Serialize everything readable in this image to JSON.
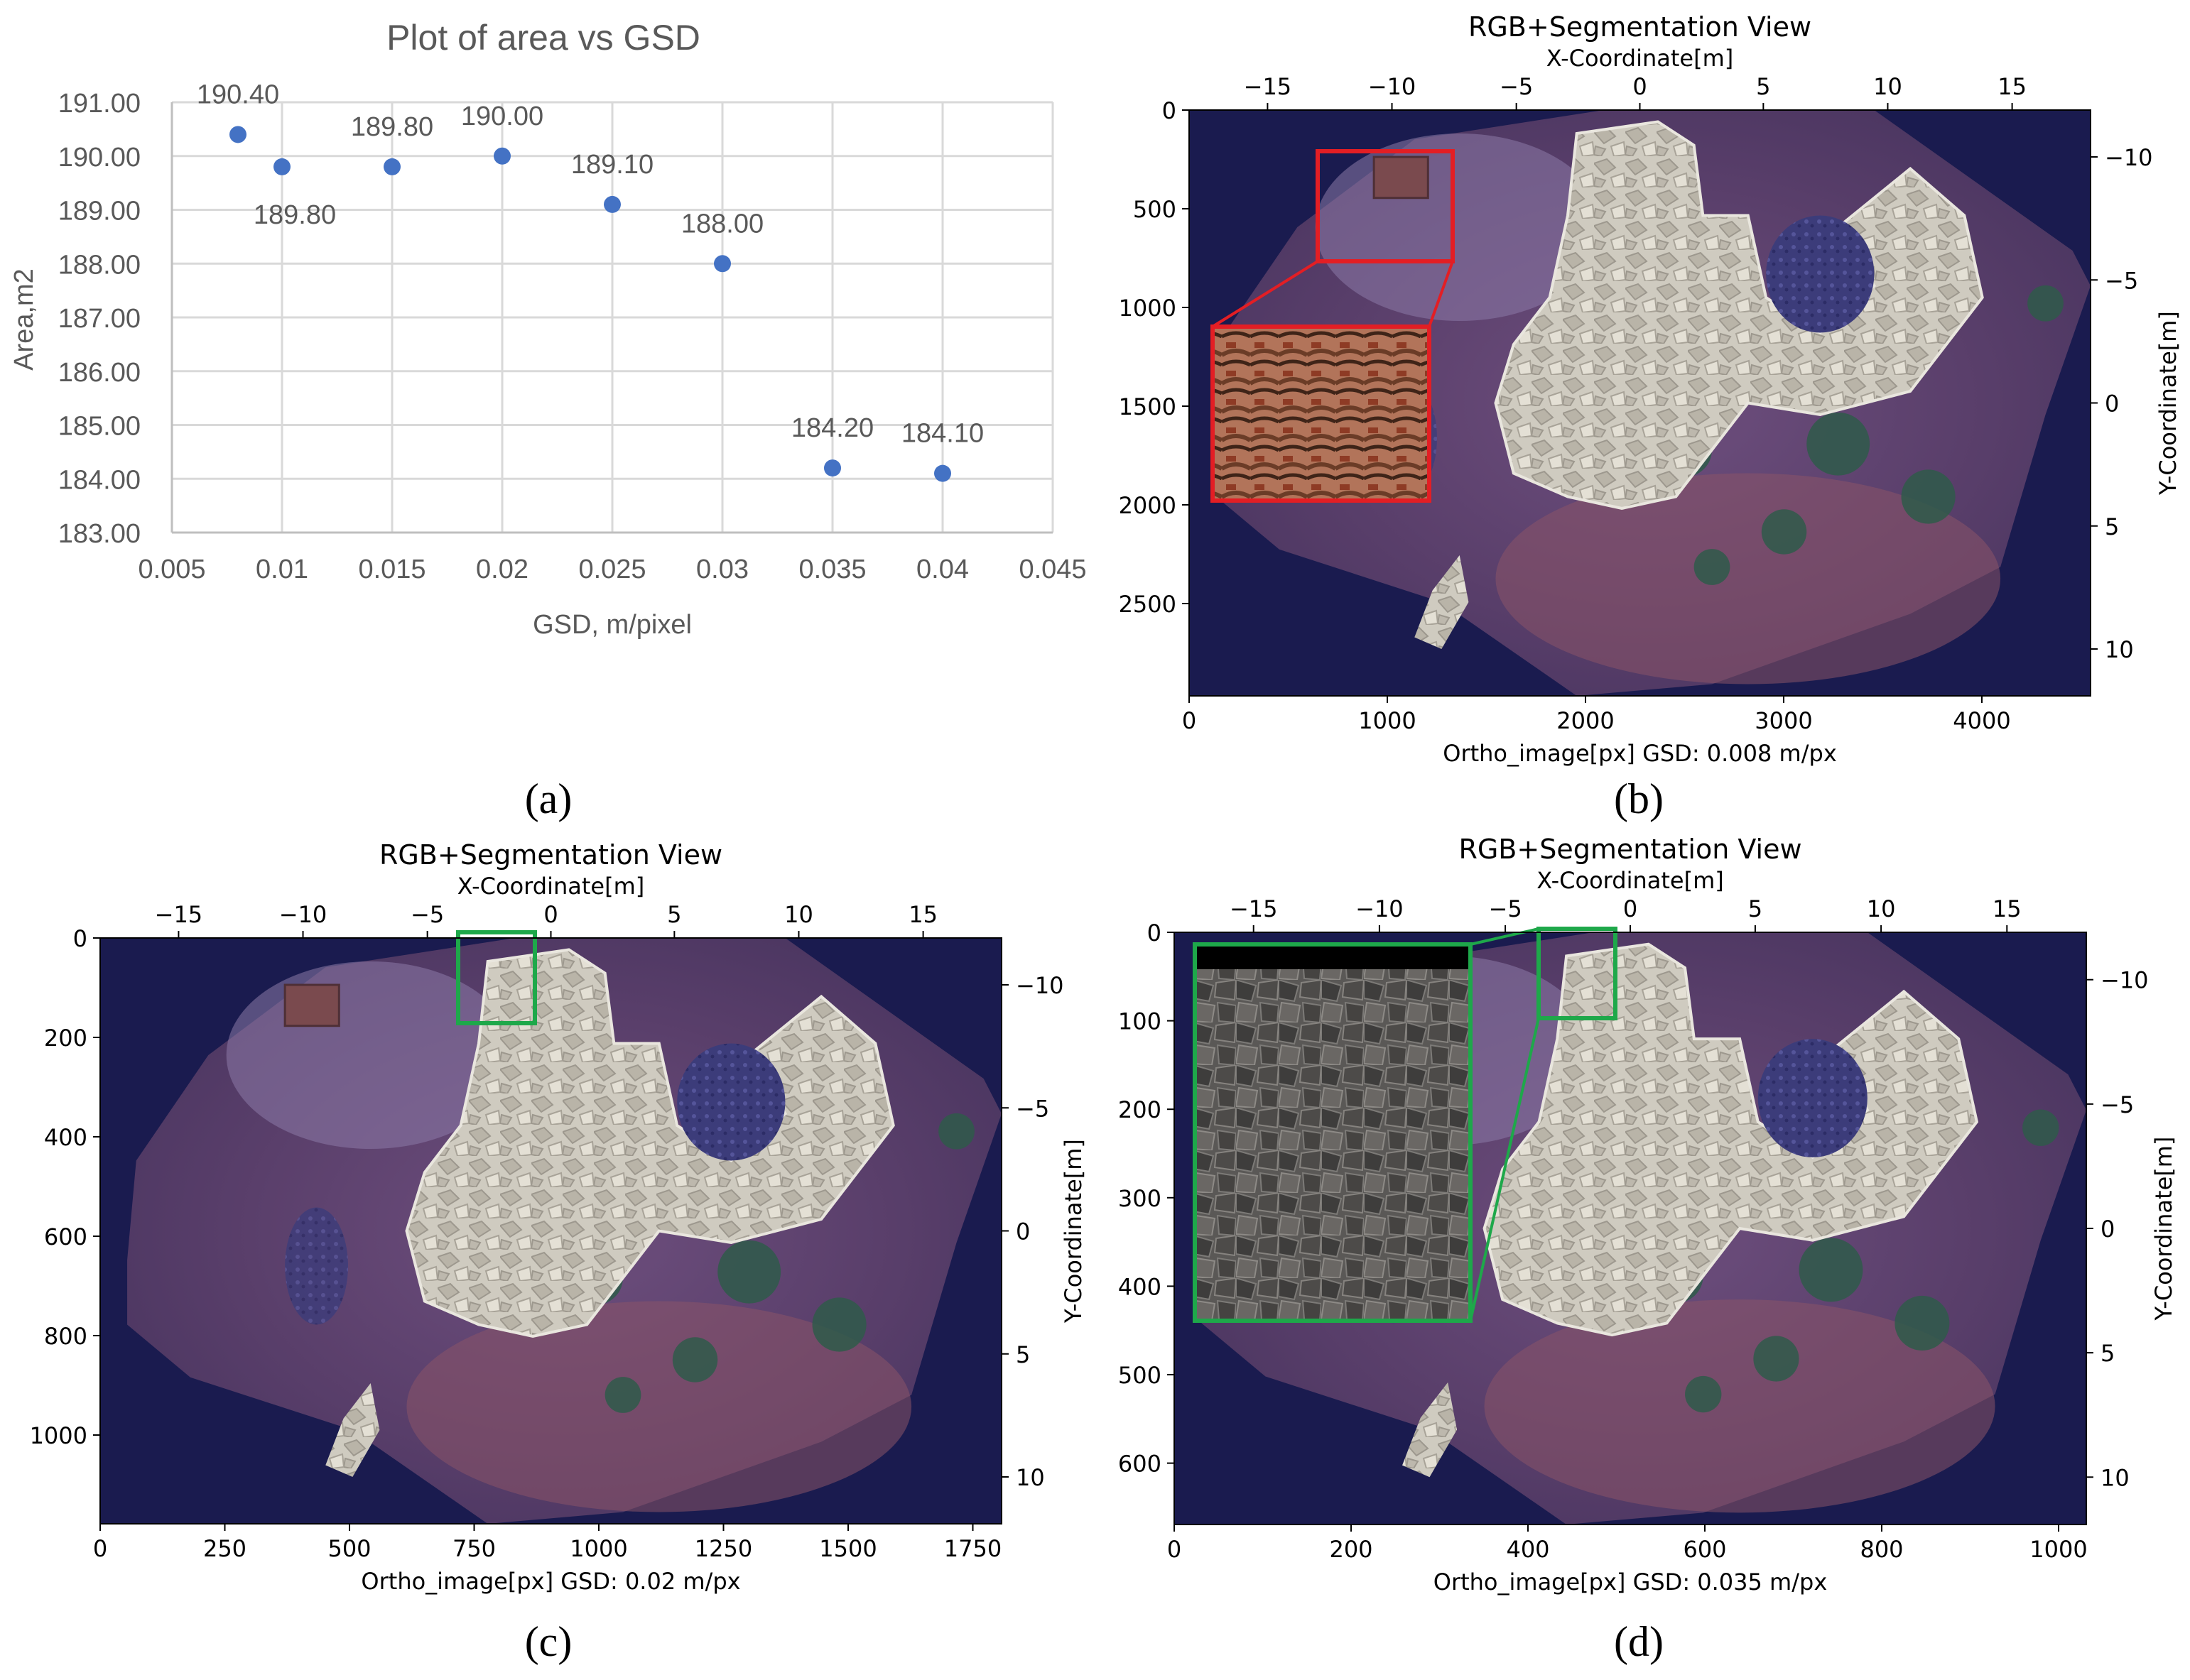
{
  "captions": {
    "a": "(a)",
    "b": "(b)",
    "c": "(c)",
    "d": "(d)"
  },
  "chart_data": [
    {
      "id": "a",
      "type": "scatter",
      "title": "Plot of area vs GSD",
      "xlabel": "GSD, m/pixel",
      "ylabel": "Area,m2",
      "xlim": [
        0.005,
        0.045
      ],
      "ylim": [
        183,
        191
      ],
      "xticks": [
        "0.005",
        "0.01",
        "0.015",
        "0.02",
        "0.025",
        "0.03",
        "0.035",
        "0.04",
        "0.045"
      ],
      "yticks": [
        "183.00",
        "184.00",
        "185.00",
        "186.00",
        "187.00",
        "188.00",
        "189.00",
        "190.00",
        "191.00"
      ],
      "grid": true,
      "marker_color": "#4472c4",
      "points": [
        {
          "x": 0.008,
          "y": 190.4,
          "label": "190.40"
        },
        {
          "x": 0.01,
          "y": 189.8,
          "label": "189.80"
        },
        {
          "x": 0.015,
          "y": 189.8,
          "label": "189.80"
        },
        {
          "x": 0.02,
          "y": 190.0,
          "label": "190.00"
        },
        {
          "x": 0.025,
          "y": 189.1,
          "label": "189.10"
        },
        {
          "x": 0.03,
          "y": 188.0,
          "label": "188.00"
        },
        {
          "x": 0.035,
          "y": 184.2,
          "label": "184.20"
        },
        {
          "x": 0.04,
          "y": 184.1,
          "label": "184.10"
        }
      ]
    },
    {
      "id": "b",
      "type": "image",
      "title": "RGB+Segmentation View",
      "top_label": "X-Coordinate[m]",
      "right_label": "Y-Coordinate[m]",
      "bottom_label": "Ortho_image[px]   GSD: 0.008 m/px",
      "left_ticks": [
        "0",
        "500",
        "1000",
        "1500",
        "2000",
        "2500"
      ],
      "bottom_ticks": [
        "0",
        "1000",
        "2000",
        "3000",
        "4000"
      ],
      "top_ticks": [
        "−15",
        "−10",
        "−5",
        "0",
        "5",
        "10",
        "15"
      ],
      "right_ticks": [
        "−10",
        "−5",
        "0",
        "5",
        "10"
      ],
      "highlight_color": "#e31e24",
      "background_color": "#1a1b4f"
    },
    {
      "id": "c",
      "type": "image",
      "title": "RGB+Segmentation View",
      "top_label": "X-Coordinate[m]",
      "right_label": "Y-Coordinate[m]",
      "bottom_label": "Ortho_image[px]   GSD: 0.02 m/px",
      "left_ticks": [
        "0",
        "200",
        "400",
        "600",
        "800",
        "1000"
      ],
      "bottom_ticks": [
        "0",
        "250",
        "500",
        "750",
        "1000",
        "1250",
        "1500",
        "1750"
      ],
      "top_ticks": [
        "−15",
        "−10",
        "−5",
        "0",
        "5",
        "10",
        "15"
      ],
      "right_ticks": [
        "−10",
        "−5",
        "0",
        "5",
        "10"
      ],
      "highlight_color": "#1ea84a",
      "background_color": "#1a1b4f"
    },
    {
      "id": "d",
      "type": "image",
      "title": "RGB+Segmentation View",
      "top_label": "X-Coordinate[m]",
      "right_label": "Y-Coordinate[m]",
      "bottom_label": "Ortho_image[px]   GSD: 0.035 m/px",
      "left_ticks": [
        "0",
        "100",
        "200",
        "300",
        "400",
        "500",
        "600"
      ],
      "bottom_ticks": [
        "0",
        "200",
        "400",
        "600",
        "800",
        "1000"
      ],
      "top_ticks": [
        "−15",
        "−10",
        "−5",
        "0",
        "5",
        "10",
        "15"
      ],
      "right_ticks": [
        "−10",
        "−5",
        "0",
        "5",
        "10"
      ],
      "highlight_color": "#1ea84a",
      "background_color": "#1a1b4f"
    }
  ]
}
